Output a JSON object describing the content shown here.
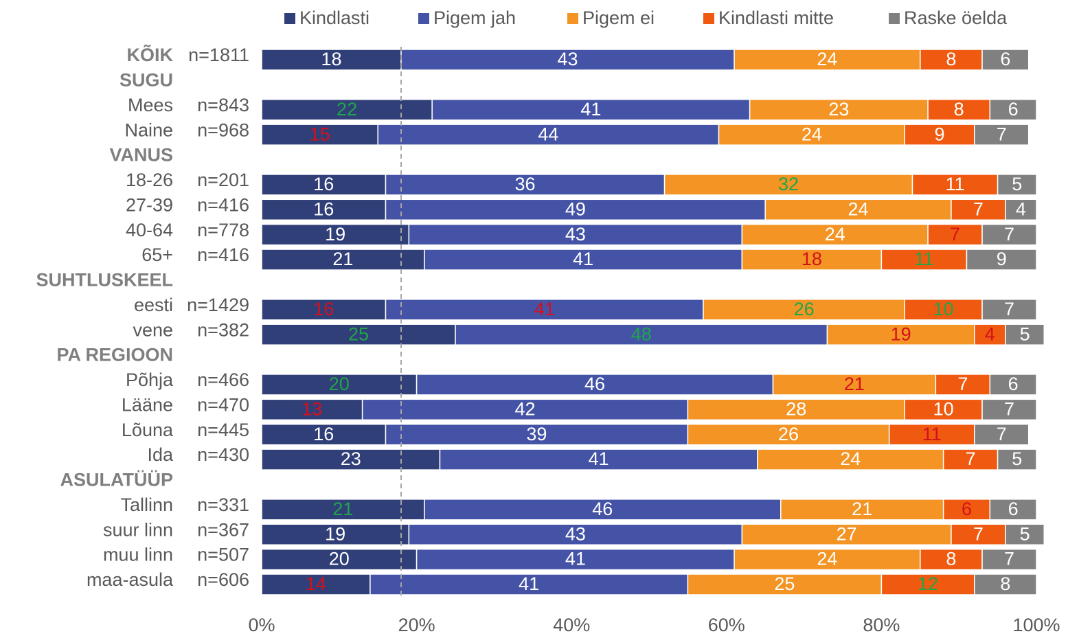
{
  "chart_data": {
    "type": "stacked-barh",
    "categories": [
      "KÕIK",
      "SUGU",
      "Mees",
      "Naine",
      "VANUS",
      "18-26",
      "27-39",
      "40-64",
      "65+",
      "SUHTLUSKEEL",
      "eesti",
      "vene",
      "PA REGIOON",
      "Põhja",
      "Lääne",
      "Lõuna",
      "Ida",
      "ASULATÜÜP",
      "Tallinn",
      "suur linn",
      "muu linn",
      "maa-asula"
    ],
    "bold_categories": [
      true,
      true,
      false,
      false,
      true,
      false,
      false,
      false,
      false,
      true,
      false,
      false,
      true,
      false,
      false,
      false,
      false,
      true,
      false,
      false,
      false,
      false
    ],
    "n_labels": [
      "n=1811",
      null,
      "n=843",
      "n=968",
      null,
      "n=201",
      "n=416",
      "n=778",
      "n=416",
      null,
      "n=1429",
      "n=382",
      null,
      "n=466",
      "n=470",
      "n=445",
      "n=430",
      null,
      "n=331",
      "n=367",
      "n=507",
      "n=606"
    ],
    "series": [
      {
        "name": "Kindlasti",
        "color": "#313f78",
        "values": [
          18,
          null,
          22,
          15,
          null,
          16,
          16,
          19,
          21,
          null,
          16,
          25,
          null,
          20,
          13,
          16,
          23,
          null,
          21,
          19,
          20,
          14
        ],
        "label_colors": [
          null,
          null,
          "#1fa54a",
          "#d4101c",
          null,
          null,
          null,
          null,
          null,
          null,
          "#d4101c",
          "#1fa54a",
          null,
          "#1fa54a",
          "#d4101c",
          null,
          null,
          null,
          "#1fa54a",
          null,
          null,
          "#d4101c"
        ]
      },
      {
        "name": "Pigem jah",
        "color": "#4453a6",
        "values": [
          43,
          null,
          41,
          44,
          null,
          36,
          49,
          43,
          41,
          null,
          41,
          48,
          null,
          46,
          42,
          39,
          41,
          null,
          46,
          43,
          41,
          41
        ],
        "label_colors": [
          null,
          null,
          null,
          null,
          null,
          null,
          null,
          null,
          null,
          null,
          "#d4101c",
          "#1fa54a",
          null,
          null,
          null,
          null,
          null,
          null,
          null,
          null,
          null,
          null
        ]
      },
      {
        "name": "Pigem ei",
        "color": "#f39424",
        "values": [
          24,
          null,
          23,
          24,
          null,
          32,
          24,
          24,
          18,
          null,
          26,
          19,
          null,
          21,
          28,
          26,
          24,
          null,
          21,
          27,
          24,
          25
        ],
        "label_colors": [
          null,
          null,
          null,
          null,
          null,
          "#1fa54a",
          null,
          null,
          "#d4101c",
          null,
          "#1fa54a",
          "#d4101c",
          null,
          "#d4101c",
          null,
          null,
          null,
          null,
          null,
          null,
          null,
          null
        ]
      },
      {
        "name": "Kindlasti mitte",
        "color": "#ef5a10",
        "values": [
          8,
          null,
          8,
          9,
          null,
          11,
          7,
          7,
          11,
          null,
          10,
          4,
          null,
          7,
          10,
          11,
          7,
          null,
          6,
          7,
          8,
          12
        ],
        "label_colors": [
          null,
          null,
          null,
          null,
          null,
          null,
          null,
          "#d4101c",
          "#1fa54a",
          null,
          "#1fa54a",
          "#d4101c",
          null,
          null,
          null,
          "#d4101c",
          null,
          null,
          "#d4101c",
          null,
          null,
          "#1fa54a"
        ]
      },
      {
        "name": "Raske öelda",
        "color": "#808080",
        "values": [
          6,
          null,
          6,
          7,
          null,
          5,
          4,
          7,
          9,
          null,
          7,
          5,
          null,
          6,
          7,
          7,
          5,
          null,
          6,
          5,
          7,
          8
        ],
        "label_colors": [
          null,
          null,
          null,
          null,
          null,
          null,
          null,
          null,
          null,
          null,
          null,
          null,
          null,
          null,
          null,
          null,
          null,
          null,
          null,
          null,
          null,
          null
        ]
      }
    ],
    "default_label_color": "#ffffff",
    "xlim": [
      0,
      100
    ],
    "xticks": [
      {
        "value": 0,
        "label": "0%"
      },
      {
        "value": 20,
        "label": "20%"
      },
      {
        "value": 40,
        "label": "40%"
      },
      {
        "value": 60,
        "label": "60%"
      },
      {
        "value": 80,
        "label": "80%"
      },
      {
        "value": 100,
        "label": "100%"
      }
    ],
    "reference_line": 18,
    "legend": "top"
  }
}
